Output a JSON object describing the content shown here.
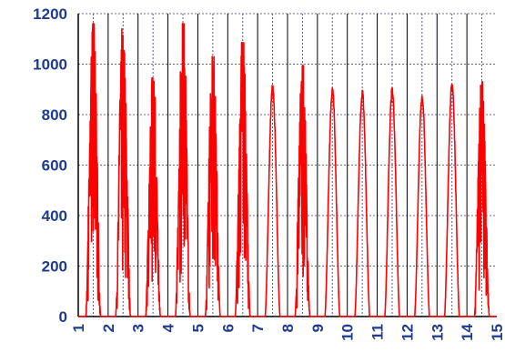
{
  "chart_data": {
    "type": "line",
    "title": "",
    "xlabel": "",
    "ylabel": "",
    "xlim": [
      1,
      15
    ],
    "ylim": [
      0,
      1200
    ],
    "x_ticks": [
      "1",
      "2",
      "3",
      "4",
      "5",
      "6",
      "7",
      "8",
      "9",
      "10",
      "11",
      "12",
      "13",
      "14",
      "15"
    ],
    "y_ticks": [
      "0",
      "200",
      "400",
      "600",
      "800",
      "1000",
      "1200"
    ],
    "grid": {
      "vertical": true,
      "horizontal": true
    },
    "series": [
      {
        "color": "#ff0000",
        "daily_peaks": [
          1160,
          1140,
          945,
          1160,
          1030,
          1085,
          915,
          995,
          905,
          895,
          905,
          880,
          925,
          930
        ],
        "noisy_days": [
          true,
          true,
          true,
          true,
          true,
          true,
          false,
          true,
          false,
          false,
          false,
          false,
          false,
          true
        ],
        "day_start": 0.25,
        "day_end": 0.75
      }
    ]
  },
  "colors": {
    "line": "#ff0000",
    "axis_text": "#1f3b8f",
    "vgrid": "#000000",
    "hgrid": "#6b6b9a"
  }
}
